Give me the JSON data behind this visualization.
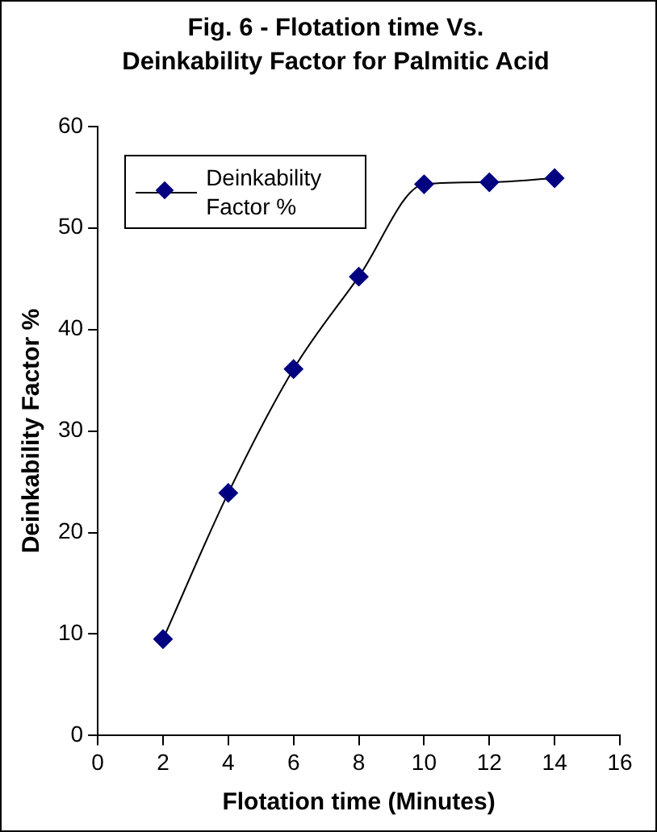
{
  "chart_data": {
    "type": "line",
    "title": "Fig. 6 - Flotation time Vs. Deinkability Factor for Palmitic Acid",
    "xlabel": "Flotation time (Minutes)",
    "ylabel": "Deinkability Factor %",
    "x": [
      2,
      4,
      6,
      8,
      10,
      12,
      14
    ],
    "series": [
      {
        "name": "Deinkability Factor %",
        "color": "#000080",
        "values": [
          9.5,
          23.9,
          36.1,
          45.2,
          54.3,
          54.5,
          54.9
        ]
      }
    ],
    "xlim": [
      0,
      16
    ],
    "xticks": [
      0,
      2,
      4,
      6,
      8,
      10,
      12,
      14,
      16
    ],
    "ylim": [
      0,
      60
    ],
    "yticks": [
      0,
      10,
      20,
      30,
      40,
      50,
      60
    ],
    "grid": false,
    "legend": "top left",
    "marker": "diamond",
    "line_style": "solid"
  }
}
